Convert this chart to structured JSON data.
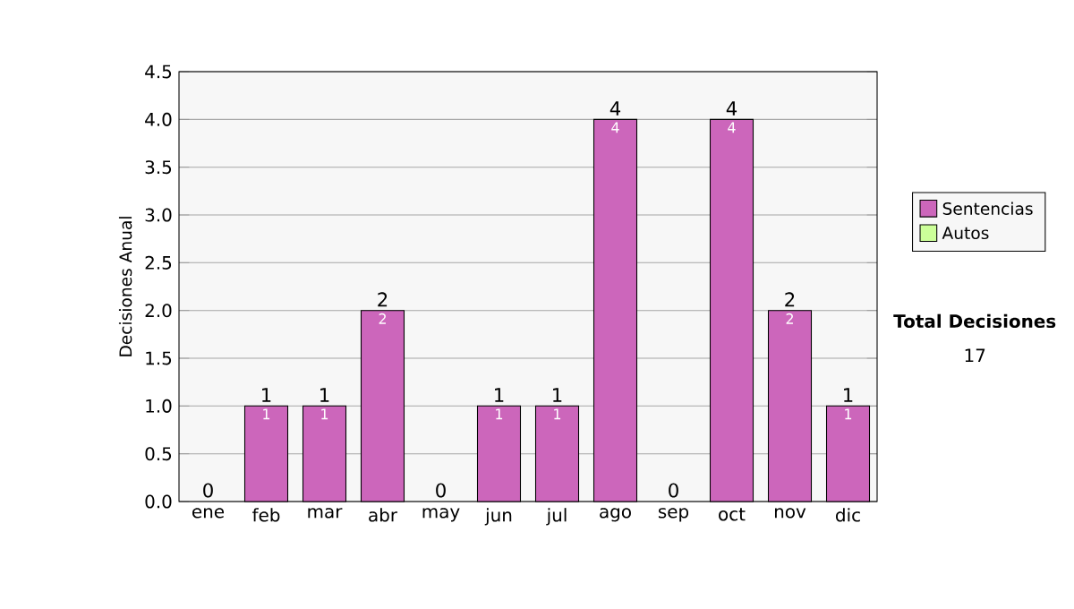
{
  "chart_data": {
    "type": "bar",
    "stacked": true,
    "ylabel": "Decisiones Anual",
    "categories": [
      "ene",
      "feb",
      "mar",
      "abr",
      "may",
      "jun",
      "jul",
      "ago",
      "sep",
      "oct",
      "nov",
      "dic"
    ],
    "series": [
      {
        "name": "Sentencias",
        "color": "#cc66bb",
        "values": [
          0,
          1,
          1,
          2,
          0,
          1,
          1,
          4,
          0,
          4,
          2,
          1
        ],
        "value_labels": [
          null,
          "1",
          "1",
          "2",
          null,
          "1",
          "1",
          "4",
          null,
          "4",
          "2",
          "1"
        ]
      },
      {
        "name": "Autos",
        "color": "#ccff99",
        "values": [
          0,
          0,
          0,
          0,
          0,
          0,
          0,
          0,
          0,
          0,
          0,
          0
        ]
      }
    ],
    "ylim": [
      0,
      4.5
    ],
    "yticks": [
      {
        "value": 0,
        "label": "0.0"
      },
      {
        "value": 0.5,
        "label": "0.5"
      },
      {
        "value": 1,
        "label": "1.0"
      },
      {
        "value": 1.5,
        "label": "1.5"
      },
      {
        "value": 2,
        "label": "2.0"
      },
      {
        "value": 2.5,
        "label": "2.5"
      },
      {
        "value": 3,
        "label": "3.0"
      },
      {
        "value": 3.5,
        "label": "3.5"
      },
      {
        "value": 4,
        "label": "4.0"
      },
      {
        "value": 4.5,
        "label": "4.5"
      }
    ],
    "grid": "y",
    "legend": "right",
    "totals": [
      "0",
      "1",
      "1",
      "2",
      "0",
      "1",
      "1",
      "4",
      "0",
      "4",
      "2",
      "1"
    ],
    "annotations": [
      "**Total Decisiones**",
      "17"
    ]
  }
}
